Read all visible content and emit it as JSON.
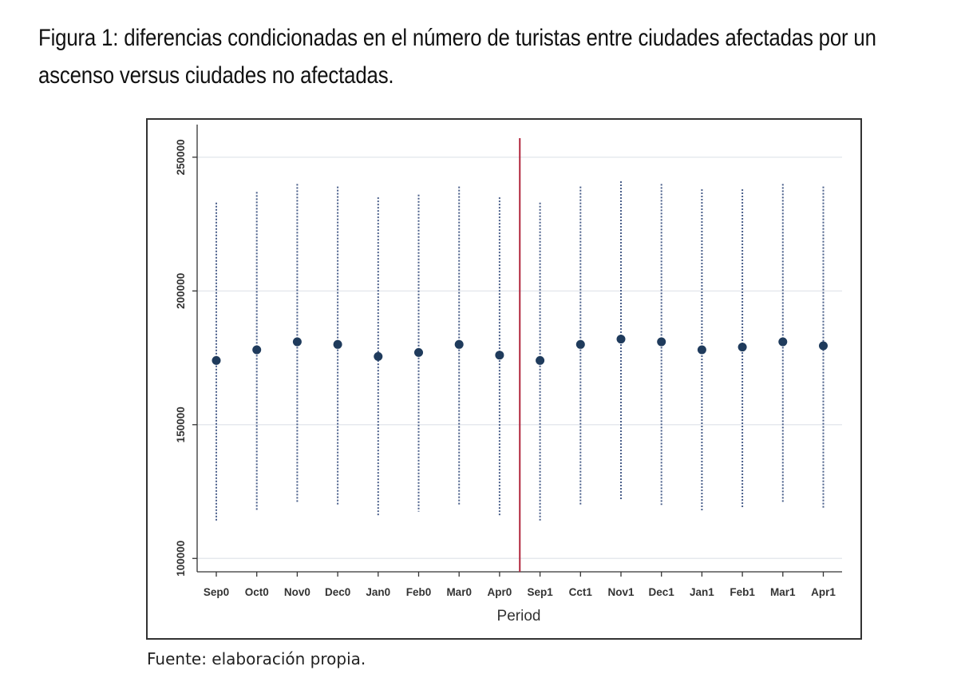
{
  "figure": {
    "title": "Figura 1: diferencias condicionadas en el número de turistas entre ciudades afectadas por un ascenso versus ciudades no afectadas.",
    "source": "Fuente: elaboración propia."
  },
  "chart_data": {
    "type": "scatter",
    "xlabel": "Period",
    "ylabel": "",
    "categories": [
      "Sep0",
      "Oct0",
      "Nov0",
      "Dec0",
      "Jan0",
      "Feb0",
      "Mar0",
      "Apr0",
      "Sep1",
      "Cct1",
      "Nov1",
      "Dec1",
      "Jan1",
      "Feb1",
      "Mar1",
      "Apr1"
    ],
    "values": [
      174000,
      178000,
      181000,
      180000,
      175500,
      177000,
      180000,
      176000,
      174000,
      180000,
      182000,
      181000,
      178000,
      179000,
      181000,
      179500
    ],
    "ci_low": [
      114000,
      118000,
      121000,
      120000,
      116000,
      117500,
      120000,
      116000,
      114000,
      120000,
      122000,
      120000,
      118000,
      119000,
      121000,
      119000
    ],
    "ci_high": [
      233000,
      237000,
      240000,
      239000,
      235000,
      236000,
      239000,
      235000,
      233000,
      239000,
      241000,
      240000,
      238000,
      238000,
      240000,
      239000
    ],
    "ylim": [
      95000,
      261000
    ],
    "yticks": [
      100000,
      150000,
      200000,
      250000
    ],
    "ytick_labels": [
      "100000",
      "150000",
      "200000",
      "250000"
    ],
    "vertical_line_between": [
      "Apr0",
      "Sep1"
    ],
    "grid": true,
    "colors": {
      "point": "#1f3b5c",
      "ci": "#4a5f8a",
      "vline": "#b0243c",
      "grid": "#e6e9ee",
      "frame": "#333333"
    }
  }
}
